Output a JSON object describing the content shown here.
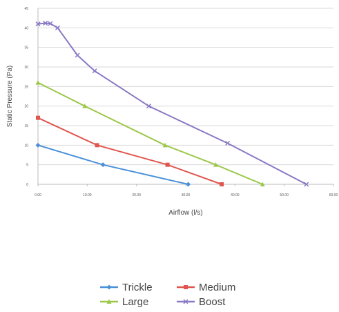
{
  "chart_data": {
    "type": "line",
    "title": "",
    "xlabel": "Airflow (l/s)",
    "ylabel": "Static Pressure (Pa)",
    "xlim": [
      0,
      60
    ],
    "ylim": [
      0,
      45
    ],
    "x_ticks": [
      0,
      10,
      20,
      30,
      40,
      50,
      60
    ],
    "x_tick_labels": [
      "0.00",
      "10.00",
      "20.00",
      "30.00",
      "40.00",
      "50.00",
      "60.00"
    ],
    "y_ticks": [
      0,
      5,
      10,
      15,
      20,
      25,
      30,
      35,
      40,
      45
    ],
    "y_tick_labels": [
      "0",
      "5",
      "10",
      "15",
      "20",
      "25",
      "30",
      "35",
      "40",
      "45"
    ],
    "grid": true,
    "legend_position": "bottom",
    "series": [
      {
        "name": "Trickle",
        "color": "#4a90d9",
        "marker": "diamond",
        "points": [
          [
            0,
            10
          ],
          [
            13.2,
            5
          ],
          [
            30.5,
            0
          ]
        ]
      },
      {
        "name": "Medium",
        "color": "#e0564f",
        "marker": "square",
        "points": [
          [
            0,
            17
          ],
          [
            12,
            10
          ],
          [
            26.3,
            5
          ],
          [
            37.3,
            0
          ]
        ]
      },
      {
        "name": "Large",
        "color": "#9cc84a",
        "marker": "triangle",
        "points": [
          [
            0,
            26
          ],
          [
            9.5,
            20
          ],
          [
            25.8,
            10
          ],
          [
            36.1,
            5
          ],
          [
            45.6,
            0
          ]
        ]
      },
      {
        "name": "Boost",
        "color": "#8a78c4",
        "marker": "x",
        "points": [
          [
            0,
            41
          ],
          [
            1.5,
            41.2
          ],
          [
            2.5,
            41.1
          ],
          [
            4,
            40
          ],
          [
            8,
            33
          ],
          [
            11.5,
            29
          ],
          [
            22.5,
            20
          ],
          [
            38.5,
            10.5
          ],
          [
            54.5,
            0
          ]
        ]
      }
    ]
  }
}
